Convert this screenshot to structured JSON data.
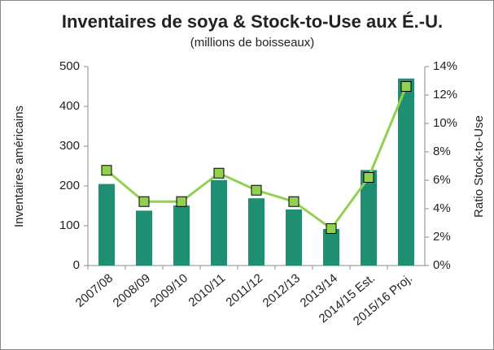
{
  "chart_data": {
    "type": "bar",
    "title": "Inventaires de soya & Stock-to-Use aux É.-U.",
    "subtitle": "(millions de boisseaux)",
    "y_label": "Inventaires  américains",
    "y2_label": "Ratio Stock-to-Use",
    "categories": [
      "2007/08",
      "2008/09",
      "2009/10",
      "2010/11",
      "2011/12",
      "2012/13",
      "2013/14",
      "2014/15 Est.",
      "2015/16 Proj."
    ],
    "series": [
      {
        "type": "bar",
        "color": "#1f8f74",
        "values": [
          205,
          138,
          151,
          215,
          169,
          141,
          92,
          240,
          470
        ]
      },
      {
        "type": "line",
        "axis": "y2",
        "color": "#92d050",
        "values": [
          6.7,
          4.5,
          4.5,
          6.5,
          5.3,
          4.5,
          2.6,
          6.2,
          12.6
        ]
      }
    ],
    "ylim": [
      0,
      500
    ],
    "yticks": [
      0,
      100,
      200,
      300,
      400,
      500
    ],
    "y2lim": [
      0,
      14
    ],
    "y2ticks": [
      {
        "value": 0,
        "label": "0%"
      },
      {
        "value": 2,
        "label": "2%"
      },
      {
        "value": 4,
        "label": "4%"
      },
      {
        "value": 6,
        "label": "6%"
      },
      {
        "value": 8,
        "label": "8%"
      },
      {
        "value": 10,
        "label": "10%"
      },
      {
        "value": 12,
        "label": "12%"
      },
      {
        "value": 14,
        "label": "14%"
      }
    ],
    "grid": false
  }
}
